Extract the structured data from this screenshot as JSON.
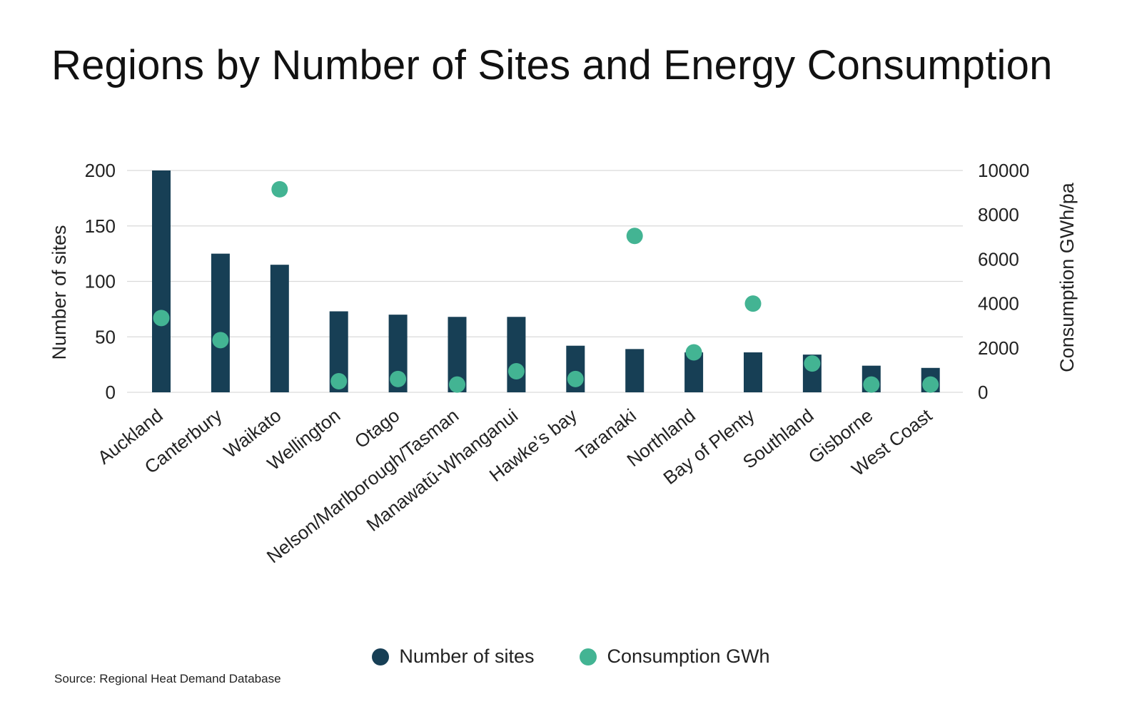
{
  "chart_data": {
    "type": "bar",
    "title": "Regions by Number of Sites and Energy Consumption",
    "categories": [
      "Auckland",
      "Canterbury",
      "Waikato",
      "Wellington",
      "Otago",
      "Nelson/Marlborough/Tasman",
      "Manawatū-Whanganui",
      "Hawke’s bay",
      "Taranaki",
      "Northland",
      "Bay of Plenty",
      "Southland",
      "Gisborne",
      "West Coast"
    ],
    "series": [
      {
        "name": "Number of sites",
        "type": "bar",
        "axis": "left",
        "color": "#173f55",
        "values": [
          200,
          125,
          115,
          73,
          70,
          68,
          68,
          42,
          39,
          36,
          36,
          34,
          24,
          22
        ]
      },
      {
        "name": "Consumption GWh",
        "type": "scatter",
        "axis": "right",
        "color": "#43b493",
        "values": [
          3350,
          2350,
          9150,
          500,
          600,
          350,
          950,
          600,
          7050,
          1800,
          4000,
          1300,
          350,
          350
        ]
      }
    ],
    "ylabel": "Number of sites",
    "ylabel_right": "Consumption GWh/pa",
    "xlabel": "",
    "ylim": [
      0,
      200
    ],
    "ylim_right": [
      0,
      10000
    ],
    "yticks": [
      "0",
      "50",
      "100",
      "150",
      "200"
    ],
    "yticks_right": [
      "0",
      "2000",
      "4000",
      "6000",
      "8000",
      "10000"
    ],
    "grid": true,
    "legend": "bottom-center",
    "source": "Source: Regional Heat Demand Database"
  }
}
